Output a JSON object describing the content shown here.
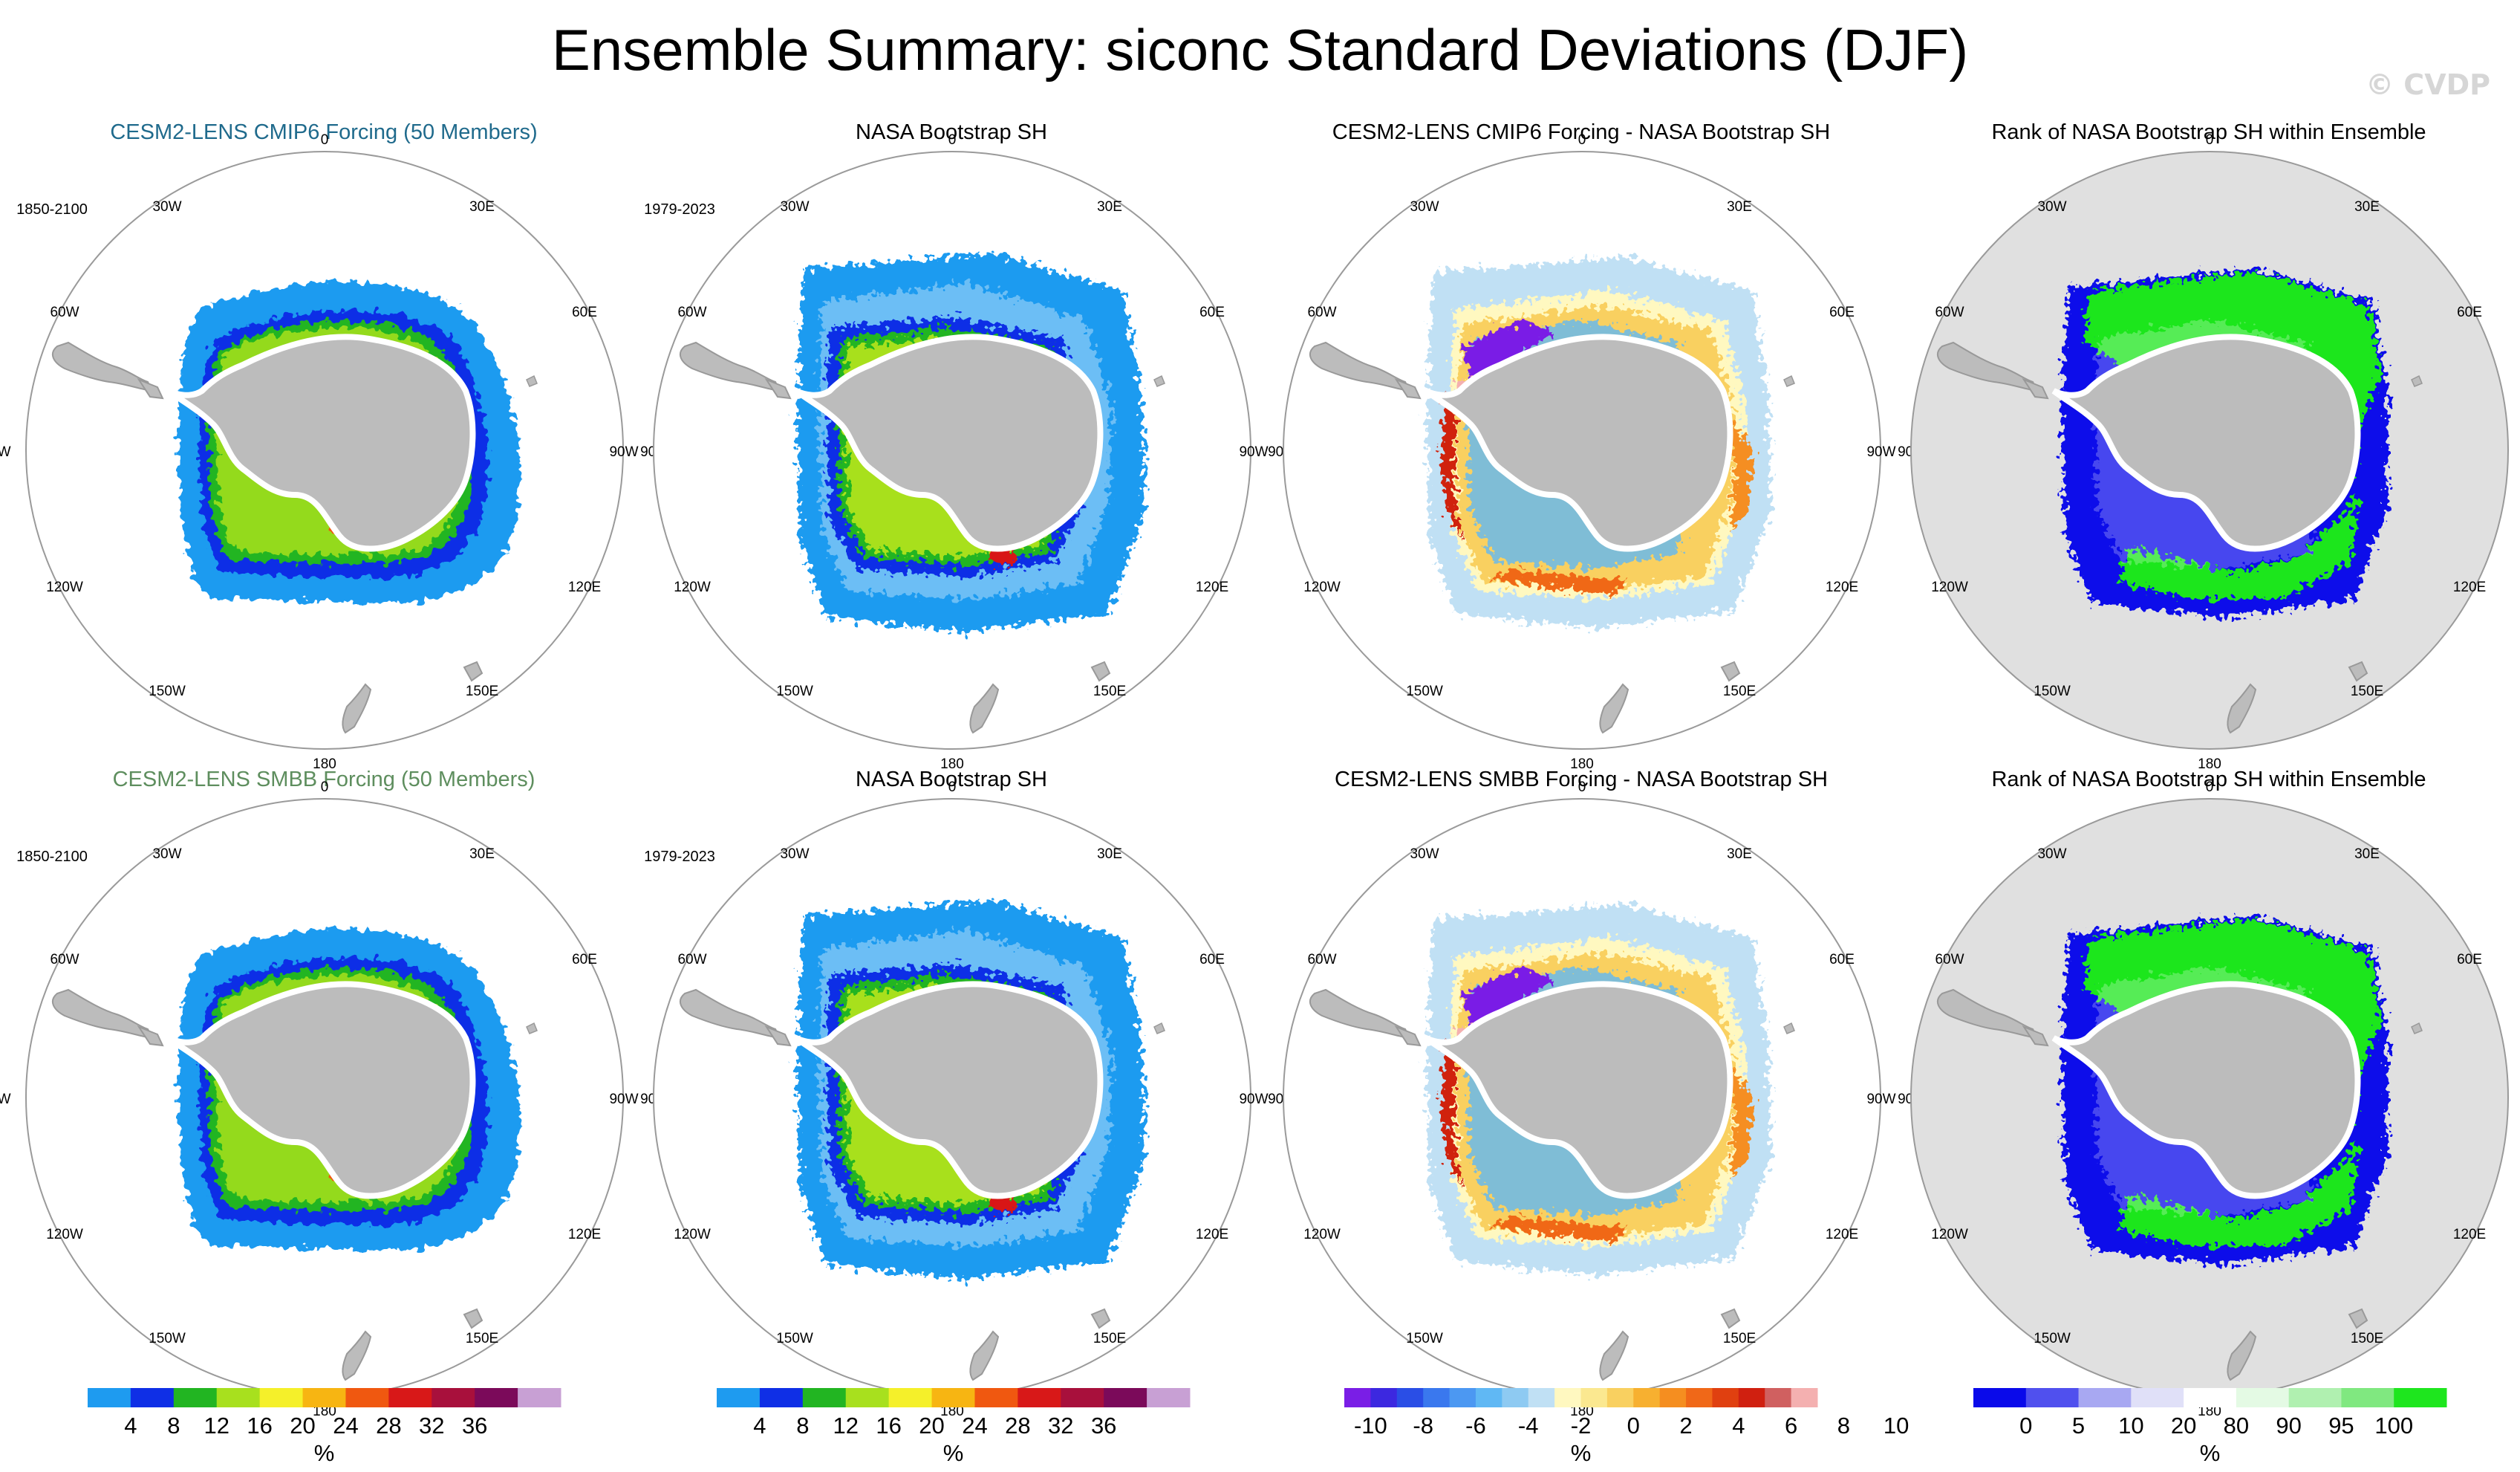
{
  "title": "Ensemble Summary: siconc Standard Deviations (DJF)",
  "watermark": "© CVDP",
  "panels": [
    {
      "id": "r1c1",
      "title": "CESM2-LENS CMIP6 Forcing (50 Members)",
      "title_color": "#1f6a8c",
      "period": "1850-2100",
      "kind": "model"
    },
    {
      "id": "r1c2",
      "title": "NASA Bootstrap SH",
      "title_color": "#000000",
      "period": "1979-2023",
      "kind": "obs"
    },
    {
      "id": "r1c3",
      "title": "CESM2-LENS CMIP6 Forcing - NASA Bootstrap SH",
      "title_color": "#000000",
      "period": "",
      "kind": "diff"
    },
    {
      "id": "r1c4",
      "title": "Rank of NASA Bootstrap SH within Ensemble",
      "title_color": "#000000",
      "period": "",
      "kind": "rank"
    },
    {
      "id": "r2c1",
      "title": "CESM2-LENS SMBB Forcing (50 Members)",
      "title_color": "#5e8e5e",
      "period": "1850-2100",
      "kind": "model"
    },
    {
      "id": "r2c2",
      "title": "NASA Bootstrap SH",
      "title_color": "#000000",
      "period": "1979-2023",
      "kind": "obs"
    },
    {
      "id": "r2c3",
      "title": "CESM2-LENS SMBB Forcing - NASA Bootstrap SH",
      "title_color": "#000000",
      "period": "",
      "kind": "diff"
    },
    {
      "id": "r2c4",
      "title": "Rank of NASA Bootstrap SH within Ensemble",
      "title_color": "#000000",
      "period": "",
      "kind": "rank"
    }
  ],
  "map_labels": {
    "top": "0",
    "bottom": "180",
    "left": "90W",
    "right": "90E",
    "upper_left_mid": "60W",
    "upper_right_mid": "60E",
    "upper_left": "30W",
    "upper_right": "30E",
    "lower_left_mid": "120W",
    "lower_right_mid": "120E",
    "lower_left": "150W",
    "lower_right": "150E"
  },
  "colorbars": [
    {
      "id": "stddev-1",
      "unit": "%",
      "colors": [
        "#1e9bf0",
        "#0f2fe6",
        "#22b522",
        "#a8e01e",
        "#f5f02a",
        "#f7b512",
        "#f05810",
        "#d81818",
        "#a8103c",
        "#7b0a5a",
        "#c8a0d4"
      ],
      "labels": [
        "4",
        "8",
        "12",
        "16",
        "20",
        "24",
        "28",
        "32",
        "36"
      ]
    },
    {
      "id": "stddev-2",
      "unit": "%",
      "colors": [
        "#1e9bf0",
        "#0f2fe6",
        "#22b522",
        "#a8e01e",
        "#f5f02a",
        "#f7b512",
        "#f05810",
        "#d81818",
        "#a8103c",
        "#7b0a5a",
        "#c8a0d4"
      ],
      "labels": [
        "4",
        "8",
        "12",
        "16",
        "20",
        "24",
        "28",
        "32",
        "36"
      ]
    },
    {
      "id": "difference",
      "unit": "%",
      "colors": [
        "#7a1ee6",
        "#3c28e0",
        "#2a4ee6",
        "#3a78ee",
        "#4c98f2",
        "#60b8f4",
        "#8ecaf2",
        "#c0e0f4",
        "#fff8c0",
        "#fbe890",
        "#f9d060",
        "#f7b030",
        "#f58e20",
        "#f06818",
        "#e04010",
        "#d02010",
        "#d06060",
        "#f4b0b0"
      ],
      "labels": [
        "-10",
        "-8",
        "-6",
        "-4",
        "-2",
        "0",
        "2",
        "4",
        "6",
        "8",
        "10"
      ]
    },
    {
      "id": "rank",
      "unit": "%",
      "colors": [
        "#0a0aea",
        "#5050ee",
        "#a8a8f2",
        "#e0e0f8",
        "#ffffff",
        "#e4fae4",
        "#b0f0b0",
        "#80e880",
        "#1ee61e"
      ],
      "labels": [
        "0",
        "5",
        "10",
        "20",
        "80",
        "90",
        "95",
        "100"
      ]
    }
  ]
}
